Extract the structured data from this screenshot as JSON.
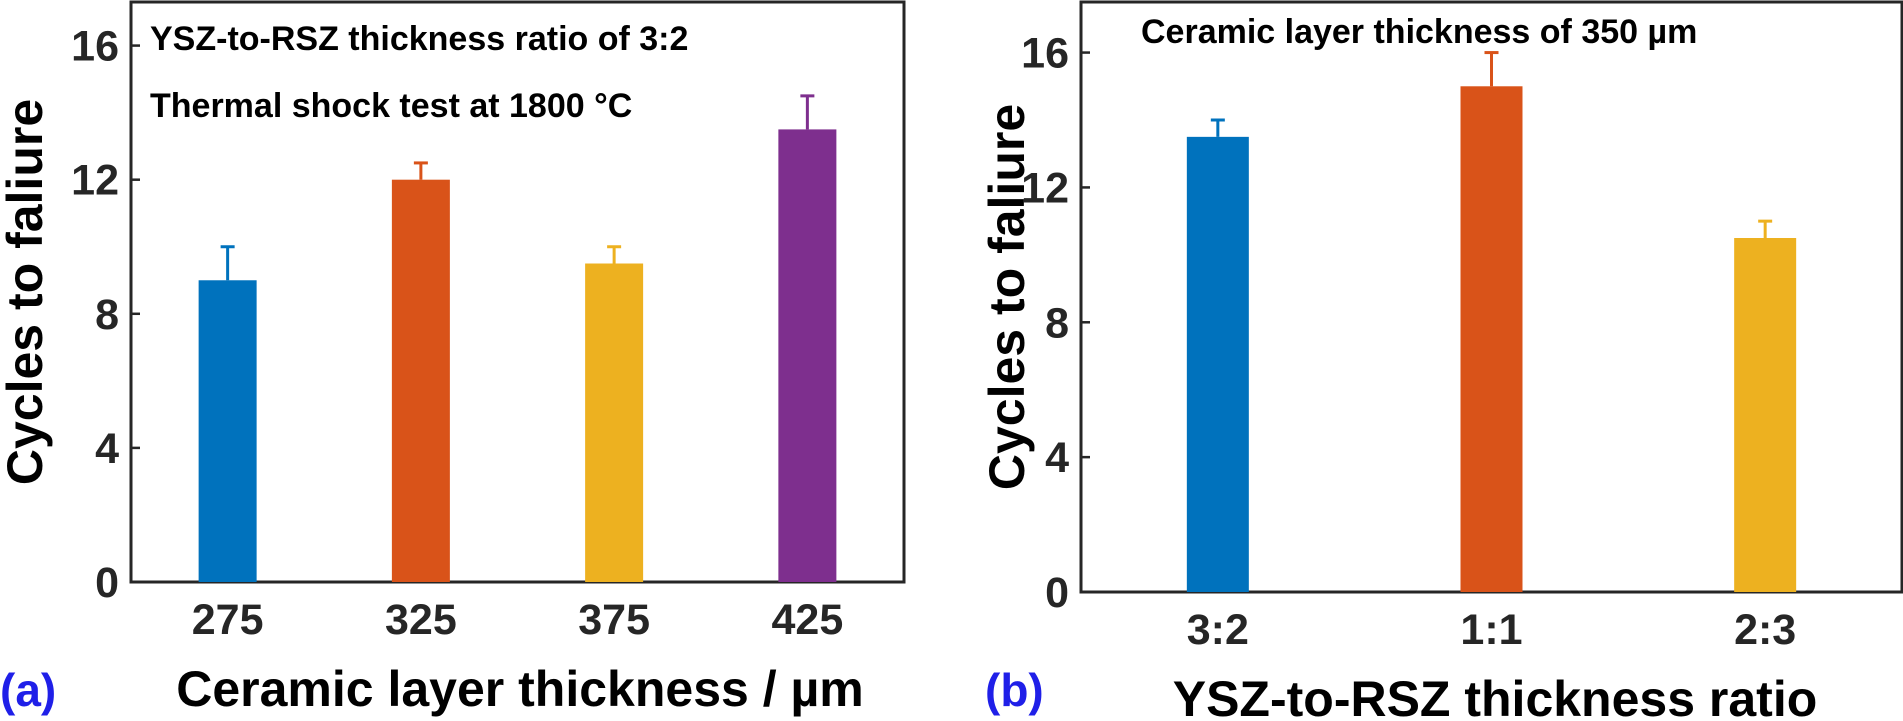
{
  "chart_data": [
    {
      "panel": "(a)",
      "type": "bar",
      "title": "",
      "annotations": [
        "YSZ-to-RSZ thickness ratio of 3:2",
        "Thermal shock test at 1800 °C"
      ],
      "xlabel": "Ceramic layer thickness / µm",
      "ylabel": "Cycles to faliure",
      "categories": [
        "275",
        "325",
        "375",
        "425"
      ],
      "values": [
        9,
        12,
        9.5,
        13.5
      ],
      "errors": [
        1,
        0.5,
        0.5,
        1
      ],
      "colors": [
        "#0072bd",
        "#d95319",
        "#edb120",
        "#7e2f8e"
      ],
      "ylim": [
        0,
        17.3
      ],
      "yticks": [
        0,
        4,
        8,
        12,
        16
      ],
      "grid": false,
      "legend": "none"
    },
    {
      "panel": "(b)",
      "type": "bar",
      "title": "",
      "annotations": [
        "Ceramic layer thickness of 350 µm"
      ],
      "xlabel": "YSZ-to-RSZ thickness ratio",
      "ylabel": "Cycles to faliure",
      "categories": [
        "3:2",
        "1:1",
        "2:3"
      ],
      "values": [
        13.5,
        15,
        10.5
      ],
      "errors": [
        0.5,
        1,
        0.5
      ],
      "colors": [
        "#0072bd",
        "#d95319",
        "#edb120"
      ],
      "ylim": [
        0,
        17.5
      ],
      "yticks": [
        0,
        4,
        8,
        12,
        16
      ],
      "grid": false,
      "legend": "none"
    }
  ]
}
